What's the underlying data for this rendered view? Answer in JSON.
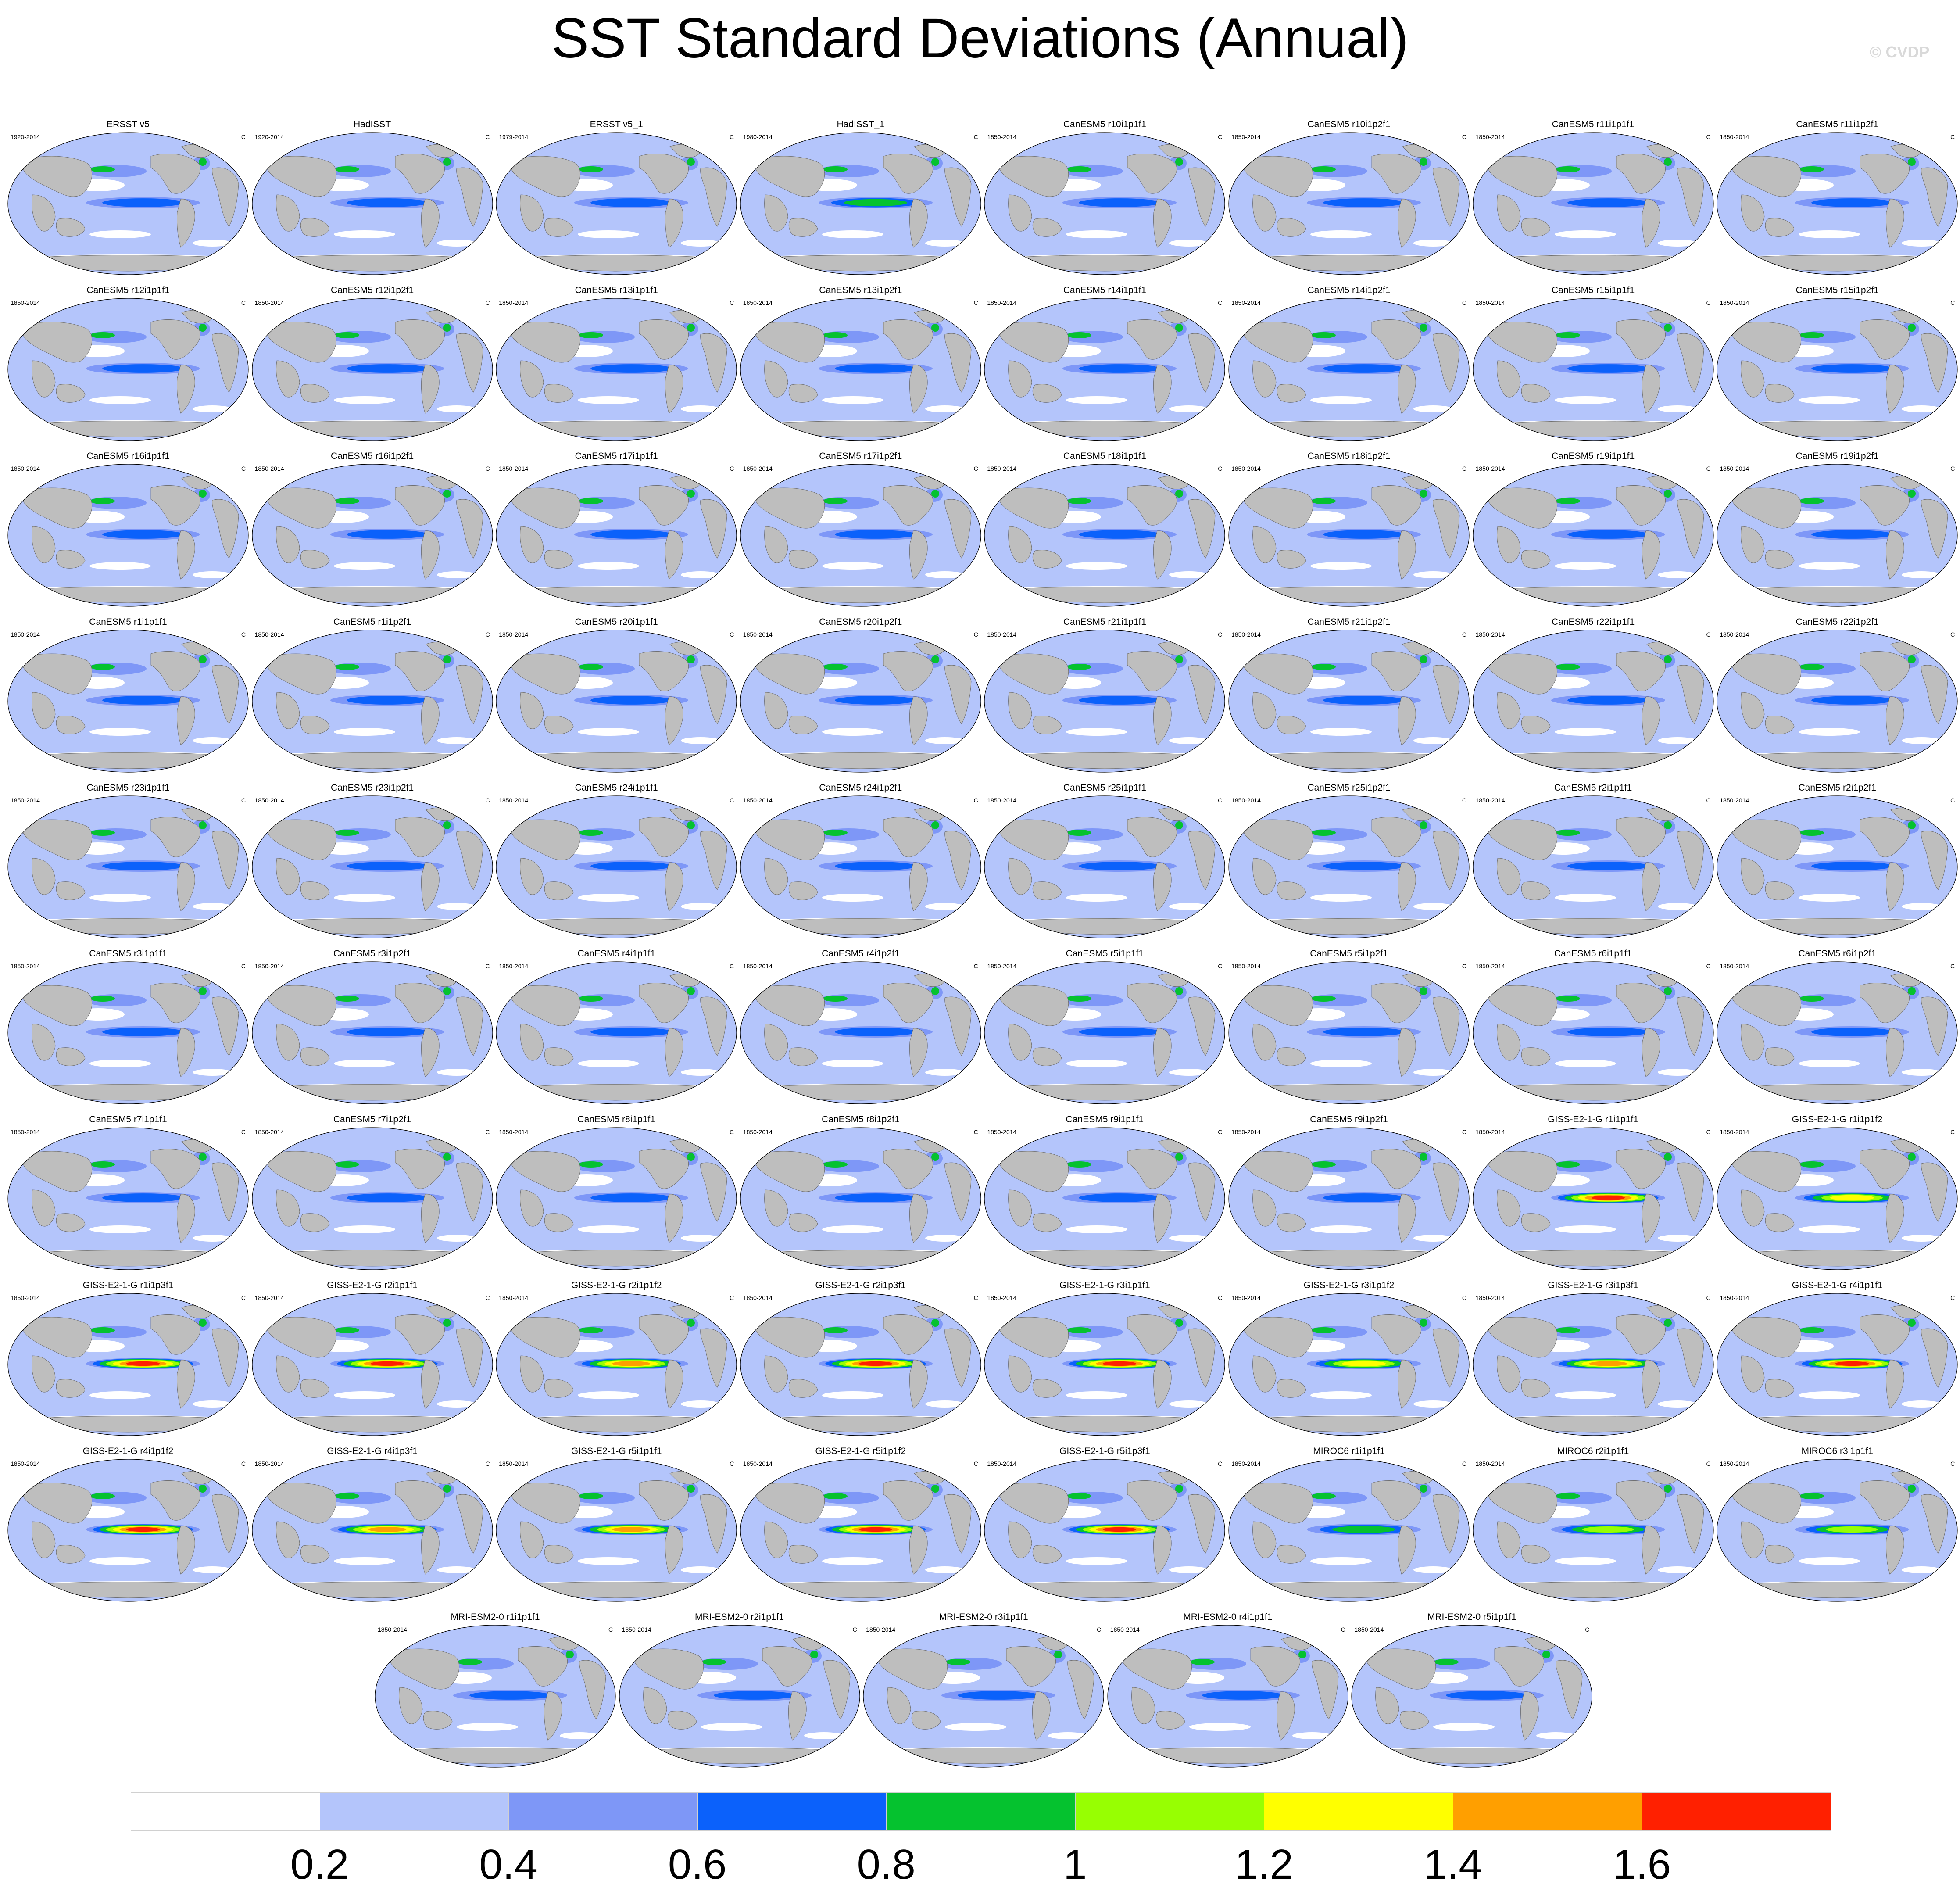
{
  "title": "SST Standard Deviations (Annual)",
  "watermark": "© CVDP",
  "chart_data": {
    "type": "heatmap",
    "title": "SST Standard Deviations (Annual)",
    "units": "C",
    "variable": "SST standard deviation",
    "colorbar": {
      "levels": [
        0.2,
        0.4,
        0.6,
        0.8,
        1,
        1.2,
        1.4,
        1.6
      ],
      "tick_labels": [
        "0.2",
        "0.4",
        "0.6",
        "0.8",
        "1",
        "1.2",
        "1.4",
        "1.6"
      ],
      "colors": [
        "#ffffff",
        "#b4c5fb",
        "#7e97f7",
        "#0b61fb",
        "#05c22f",
        "#97ff02",
        "#ffff00",
        "#ff9f00",
        "#ff2000"
      ]
    },
    "panels": [
      {
        "name": "ERSST v5",
        "years": "1920-2014",
        "units": "C",
        "enso_max": 0.8
      },
      {
        "name": "HadISST",
        "years": "1920-2014",
        "units": "C",
        "enso_max": 0.8
      },
      {
        "name": "ERSST v5_1",
        "years": "1979-2014",
        "units": "C",
        "enso_max": 0.8
      },
      {
        "name": "HadISST_1",
        "years": "1980-2014",
        "units": "C",
        "enso_max": 1.0
      },
      {
        "name": "CanESM5 r10i1p1f1",
        "years": "1850-2014",
        "units": "C",
        "enso_max": 0.8
      },
      {
        "name": "CanESM5 r10i1p2f1",
        "years": "1850-2014",
        "units": "C",
        "enso_max": 0.8
      },
      {
        "name": "CanESM5 r11i1p1f1",
        "years": "1850-2014",
        "units": "C",
        "enso_max": 0.8
      },
      {
        "name": "CanESM5 r11i1p2f1",
        "years": "1850-2014",
        "units": "C",
        "enso_max": 0.8
      },
      {
        "name": "CanESM5 r12i1p1f1",
        "years": "1850-2014",
        "units": "C",
        "enso_max": 0.8
      },
      {
        "name": "CanESM5 r12i1p2f1",
        "years": "1850-2014",
        "units": "C",
        "enso_max": 0.8
      },
      {
        "name": "CanESM5 r13i1p1f1",
        "years": "1850-2014",
        "units": "C",
        "enso_max": 0.8
      },
      {
        "name": "CanESM5 r13i1p2f1",
        "years": "1850-2014",
        "units": "C",
        "enso_max": 0.8
      },
      {
        "name": "CanESM5 r14i1p1f1",
        "years": "1850-2014",
        "units": "C",
        "enso_max": 0.8
      },
      {
        "name": "CanESM5 r14i1p2f1",
        "years": "1850-2014",
        "units": "C",
        "enso_max": 0.8
      },
      {
        "name": "CanESM5 r15i1p1f1",
        "years": "1850-2014",
        "units": "C",
        "enso_max": 0.8
      },
      {
        "name": "CanESM5 r15i1p2f1",
        "years": "1850-2014",
        "units": "C",
        "enso_max": 0.8
      },
      {
        "name": "CanESM5 r16i1p1f1",
        "years": "1850-2014",
        "units": "C",
        "enso_max": 0.8
      },
      {
        "name": "CanESM5 r16i1p2f1",
        "years": "1850-2014",
        "units": "C",
        "enso_max": 0.8
      },
      {
        "name": "CanESM5 r17i1p1f1",
        "years": "1850-2014",
        "units": "C",
        "enso_max": 0.8
      },
      {
        "name": "CanESM5 r17i1p2f1",
        "years": "1850-2014",
        "units": "C",
        "enso_max": 0.8
      },
      {
        "name": "CanESM5 r18i1p1f1",
        "years": "1850-2014",
        "units": "C",
        "enso_max": 0.8
      },
      {
        "name": "CanESM5 r18i1p2f1",
        "years": "1850-2014",
        "units": "C",
        "enso_max": 0.8
      },
      {
        "name": "CanESM5 r19i1p1f1",
        "years": "1850-2014",
        "units": "C",
        "enso_max": 0.8
      },
      {
        "name": "CanESM5 r19i1p2f1",
        "years": "1850-2014",
        "units": "C",
        "enso_max": 0.8
      },
      {
        "name": "CanESM5 r1i1p1f1",
        "years": "1850-2014",
        "units": "C",
        "enso_max": 0.8
      },
      {
        "name": "CanESM5 r1i1p2f1",
        "years": "1850-2014",
        "units": "C",
        "enso_max": 0.8
      },
      {
        "name": "CanESM5 r20i1p1f1",
        "years": "1850-2014",
        "units": "C",
        "enso_max": 0.8
      },
      {
        "name": "CanESM5 r20i1p2f1",
        "years": "1850-2014",
        "units": "C",
        "enso_max": 0.8
      },
      {
        "name": "CanESM5 r21i1p1f1",
        "years": "1850-2014",
        "units": "C",
        "enso_max": 0.8
      },
      {
        "name": "CanESM5 r21i1p2f1",
        "years": "1850-2014",
        "units": "C",
        "enso_max": 0.8
      },
      {
        "name": "CanESM5 r22i1p1f1",
        "years": "1850-2014",
        "units": "C",
        "enso_max": 0.8
      },
      {
        "name": "CanESM5 r22i1p2f1",
        "years": "1850-2014",
        "units": "C",
        "enso_max": 0.8
      },
      {
        "name": "CanESM5 r23i1p1f1",
        "years": "1850-2014",
        "units": "C",
        "enso_max": 0.8
      },
      {
        "name": "CanESM5 r23i1p2f1",
        "years": "1850-2014",
        "units": "C",
        "enso_max": 0.8
      },
      {
        "name": "CanESM5 r24i1p1f1",
        "years": "1850-2014",
        "units": "C",
        "enso_max": 0.8
      },
      {
        "name": "CanESM5 r24i1p2f1",
        "years": "1850-2014",
        "units": "C",
        "enso_max": 0.8
      },
      {
        "name": "CanESM5 r25i1p1f1",
        "years": "1850-2014",
        "units": "C",
        "enso_max": 0.8
      },
      {
        "name": "CanESM5 r25i1p2f1",
        "years": "1850-2014",
        "units": "C",
        "enso_max": 0.8
      },
      {
        "name": "CanESM5 r2i1p1f1",
        "years": "1850-2014",
        "units": "C",
        "enso_max": 0.8
      },
      {
        "name": "CanESM5 r2i1p2f1",
        "years": "1850-2014",
        "units": "C",
        "enso_max": 0.8
      },
      {
        "name": "CanESM5 r3i1p1f1",
        "years": "1850-2014",
        "units": "C",
        "enso_max": 0.8
      },
      {
        "name": "CanESM5 r3i1p2f1",
        "years": "1850-2014",
        "units": "C",
        "enso_max": 0.8
      },
      {
        "name": "CanESM5 r4i1p1f1",
        "years": "1850-2014",
        "units": "C",
        "enso_max": 0.8
      },
      {
        "name": "CanESM5 r4i1p2f1",
        "years": "1850-2014",
        "units": "C",
        "enso_max": 0.8
      },
      {
        "name": "CanESM5 r5i1p1f1",
        "years": "1850-2014",
        "units": "C",
        "enso_max": 0.8
      },
      {
        "name": "CanESM5 r5i1p2f1",
        "years": "1850-2014",
        "units": "C",
        "enso_max": 0.8
      },
      {
        "name": "CanESM5 r6i1p1f1",
        "years": "1850-2014",
        "units": "C",
        "enso_max": 0.8
      },
      {
        "name": "CanESM5 r6i1p2f1",
        "years": "1850-2014",
        "units": "C",
        "enso_max": 0.8
      },
      {
        "name": "CanESM5 r7i1p1f1",
        "years": "1850-2014",
        "units": "C",
        "enso_max": 0.8
      },
      {
        "name": "CanESM5 r7i1p2f1",
        "years": "1850-2014",
        "units": "C",
        "enso_max": 0.8
      },
      {
        "name": "CanESM5 r8i1p1f1",
        "years": "1850-2014",
        "units": "C",
        "enso_max": 0.8
      },
      {
        "name": "CanESM5 r8i1p2f1",
        "years": "1850-2014",
        "units": "C",
        "enso_max": 0.8
      },
      {
        "name": "CanESM5 r9i1p1f1",
        "years": "1850-2014",
        "units": "C",
        "enso_max": 0.8
      },
      {
        "name": "CanESM5 r9i1p2f1",
        "years": "1850-2014",
        "units": "C",
        "enso_max": 0.8
      },
      {
        "name": "GISS-E2-1-G r1i1p1f1",
        "years": "1850-2014",
        "units": "C",
        "enso_max": 1.8
      },
      {
        "name": "GISS-E2-1-G r1i1p1f2",
        "years": "1850-2014",
        "units": "C",
        "enso_max": 1.4
      },
      {
        "name": "GISS-E2-1-G r1i1p3f1",
        "years": "1850-2014",
        "units": "C",
        "enso_max": 1.8
      },
      {
        "name": "GISS-E2-1-G r2i1p1f1",
        "years": "1850-2014",
        "units": "C",
        "enso_max": 1.8
      },
      {
        "name": "GISS-E2-1-G r2i1p1f2",
        "years": "1850-2014",
        "units": "C",
        "enso_max": 1.6
      },
      {
        "name": "GISS-E2-1-G r2i1p3f1",
        "years": "1850-2014",
        "units": "C",
        "enso_max": 1.8
      },
      {
        "name": "GISS-E2-1-G r3i1p1f1",
        "years": "1850-2014",
        "units": "C",
        "enso_max": 1.8
      },
      {
        "name": "GISS-E2-1-G r3i1p1f2",
        "years": "1850-2014",
        "units": "C",
        "enso_max": 1.4
      },
      {
        "name": "GISS-E2-1-G r3i1p3f1",
        "years": "1850-2014",
        "units": "C",
        "enso_max": 1.6
      },
      {
        "name": "GISS-E2-1-G r4i1p1f1",
        "years": "1850-2014",
        "units": "C",
        "enso_max": 1.8
      },
      {
        "name": "GISS-E2-1-G r4i1p1f2",
        "years": "1850-2014",
        "units": "C",
        "enso_max": 1.8
      },
      {
        "name": "GISS-E2-1-G r4i1p3f1",
        "years": "1850-2014",
        "units": "C",
        "enso_max": 1.6
      },
      {
        "name": "GISS-E2-1-G r5i1p1f1",
        "years": "1850-2014",
        "units": "C",
        "enso_max": 1.6
      },
      {
        "name": "GISS-E2-1-G r5i1p1f2",
        "years": "1850-2014",
        "units": "C",
        "enso_max": 1.8
      },
      {
        "name": "GISS-E2-1-G r5i1p3f1",
        "years": "1850-2014",
        "units": "C",
        "enso_max": 1.8
      },
      {
        "name": "MIROC6 r1i1p1f1",
        "years": "1850-2014",
        "units": "C",
        "enso_max": 1.0
      },
      {
        "name": "MIROC6 r2i1p1f1",
        "years": "1850-2014",
        "units": "C",
        "enso_max": 1.2
      },
      {
        "name": "MIROC6 r3i1p1f1",
        "years": "1850-2014",
        "units": "C",
        "enso_max": 1.2
      },
      {
        "name": "MRI-ESM2-0 r1i1p1f1",
        "years": "1850-2014",
        "units": "C",
        "enso_max": 0.8
      },
      {
        "name": "MRI-ESM2-0 r2i1p1f1",
        "years": "1850-2014",
        "units": "C",
        "enso_max": 0.8
      },
      {
        "name": "MRI-ESM2-0 r3i1p1f1",
        "years": "1850-2014",
        "units": "C",
        "enso_max": 0.8
      },
      {
        "name": "MRI-ESM2-0 r4i1p1f1",
        "years": "1850-2014",
        "units": "C",
        "enso_max": 0.8
      },
      {
        "name": "MRI-ESM2-0 r5i1p1f1",
        "years": "1850-2014",
        "units": "C",
        "enso_max": 0.8
      }
    ]
  }
}
